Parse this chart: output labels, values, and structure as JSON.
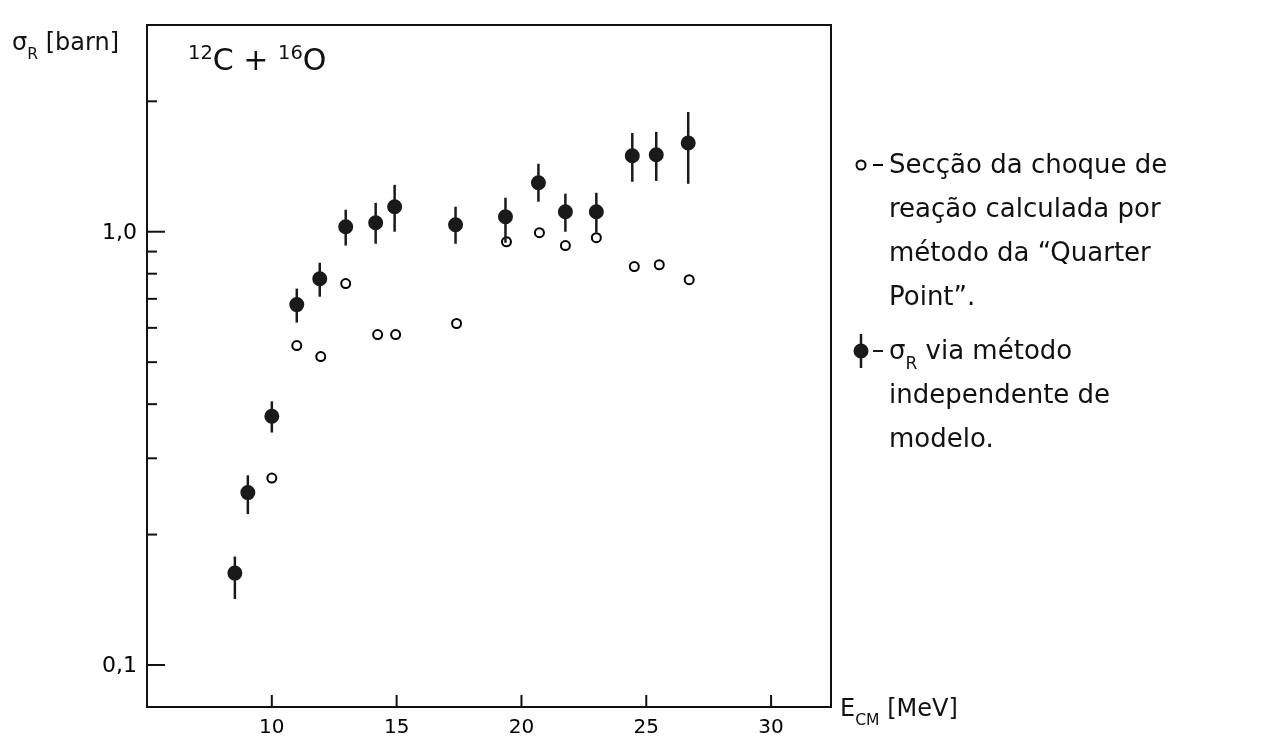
{
  "chart_data": {
    "type": "scatter",
    "title": "$^{12}$C + $^{16}$O",
    "xlabel": "E$_{CM}$ [MeV]",
    "ylabel": "σ$_{R}$ [barn]",
    "log": "y",
    "xlim": [
      5,
      32.4
    ],
    "ylim": [
      0.08,
      3
    ],
    "xticks": [
      10,
      15,
      20,
      25,
      30
    ],
    "yticks": [
      {
        "value": 0.1,
        "label": "0,1"
      },
      {
        "value": 0.2,
        "label": null
      },
      {
        "value": 0.3,
        "label": null
      },
      {
        "value": 0.4,
        "label": null
      },
      {
        "value": 0.5,
        "label": null
      },
      {
        "value": 0.6,
        "label": null
      },
      {
        "value": 0.7,
        "label": null
      },
      {
        "value": 0.8,
        "label": null
      },
      {
        "value": 0.9,
        "label": null
      },
      {
        "value": 1,
        "label": "1,0"
      },
      {
        "value": 2,
        "label": null
      }
    ],
    "grid": false,
    "legend": "right",
    "marker": "circle",
    "series": [
      {
        "name": "Secção da choque de reação calculada por método da “Quarter Point”.",
        "color": "#000000",
        "x": [
          10,
          11,
          11.96,
          12.96,
          14.24,
          14.96,
          17.4,
          19.4,
          20.72,
          21.76,
          23,
          24.52,
          25.52,
          26.72
        ],
        "values": [
          0.27,
          0.546,
          0.515,
          0.759,
          0.579,
          0.579,
          0.614,
          0.948,
          0.995,
          0.929,
          0.969,
          0.831,
          0.839,
          0.775
        ]
      },
      {
        "name": "σ$_{R}$ via método independente de modelo.",
        "color": "#1a1a1a",
        "x": [
          8.52,
          9.04,
          10,
          11,
          11.92,
          12.96,
          14.16,
          14.92,
          17.36,
          19.36,
          20.68,
          21.76,
          23,
          24.44,
          25.4,
          26.68
        ],
        "values": [
          0.163,
          0.25,
          0.375,
          0.679,
          0.779,
          1.027,
          1.049,
          1.142,
          1.038,
          1.083,
          1.297,
          1.112,
          1.112,
          1.497,
          1.505,
          1.603
        ],
        "errors": [
          [
            0.142,
            0.178
          ],
          [
            0.223,
            0.274
          ],
          [
            0.344,
            0.406
          ],
          [
            0.617,
            0.739
          ],
          [
            0.708,
            0.848
          ],
          [
            0.929,
            1.124
          ],
          [
            0.938,
            1.166
          ],
          [
            1.0,
            1.283
          ],
          [
            0.938,
            1.142
          ],
          [
            0.943,
            1.198
          ],
          [
            1.173,
            1.435
          ],
          [
            1.0,
            1.224
          ],
          [
            0.995,
            1.23
          ],
          [
            1.304,
            1.69
          ],
          [
            1.31,
            1.7
          ],
          [
            1.29,
            1.89
          ]
        ]
      }
    ]
  }
}
